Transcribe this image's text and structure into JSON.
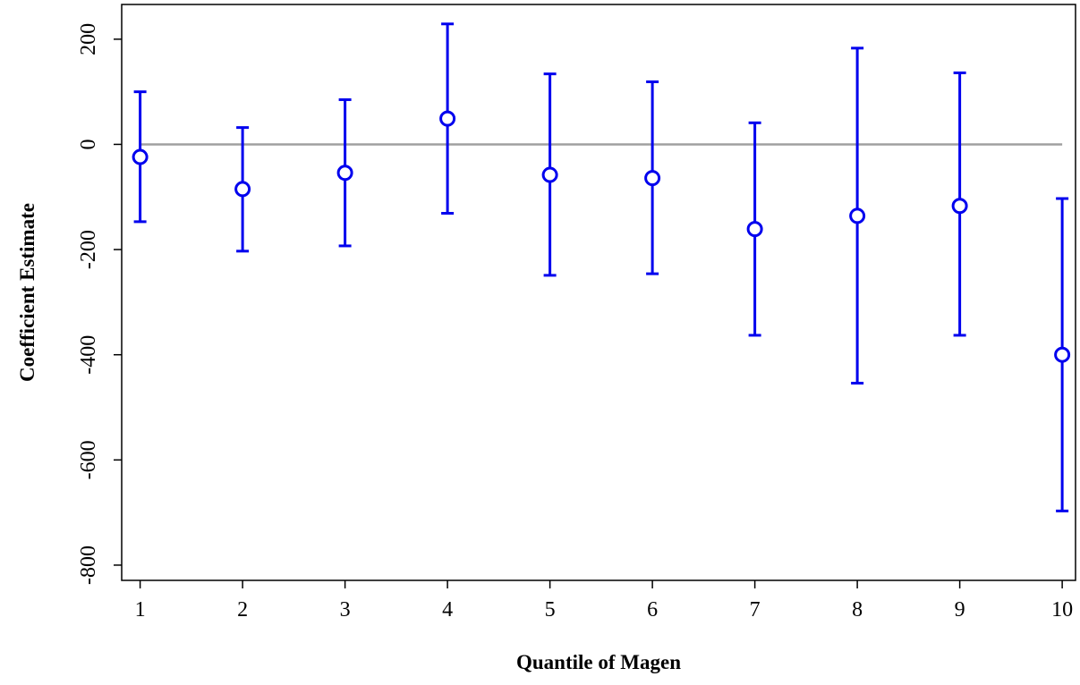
{
  "chart_data": {
    "type": "errorbar",
    "x_label": "Quantile of Magen",
    "y_label": "Coefficient Estimate",
    "x": [
      1,
      2,
      3,
      4,
      5,
      6,
      7,
      8,
      9,
      10
    ],
    "series": [
      {
        "color": "#0000ee",
        "values": [
          -24,
          -85,
          -54,
          49,
          -58,
          -64,
          -161,
          -136,
          -117,
          -400
        ],
        "lower": [
          -147,
          -203,
          -193,
          -131,
          -249,
          -246,
          -363,
          -454,
          -363,
          -697
        ],
        "upper": [
          100,
          32,
          85,
          229,
          134,
          119,
          41,
          183,
          136,
          -103
        ]
      }
    ],
    "reference_line": 0,
    "reference_color": "#a0a0a0",
    "xlim": [
      0.82,
      10.13
    ],
    "ylim": [
      -829,
      266
    ],
    "xticks": [
      1,
      2,
      3,
      4,
      5,
      6,
      7,
      8,
      9,
      10
    ],
    "yticks": [
      200,
      0,
      -200,
      -400,
      -600,
      -800
    ]
  }
}
